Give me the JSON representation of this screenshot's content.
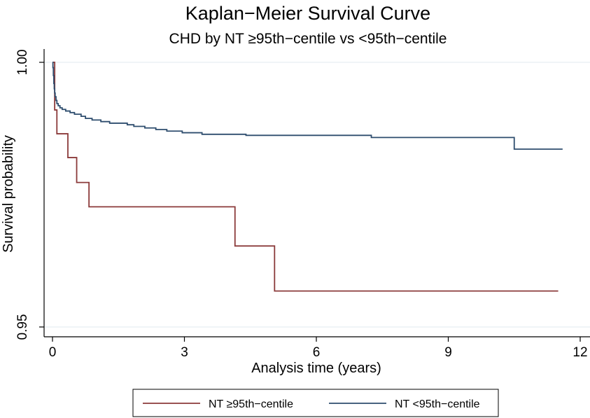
{
  "chart_data": {
    "type": "line",
    "title": "Kaplan−Meier Survival Curve",
    "subtitle": "CHD by NT ≥95th−centile vs <95th−centile",
    "xlabel": "Analysis time (years)",
    "ylabel": "Survival probability",
    "xlim": [
      0,
      12
    ],
    "ylim": [
      0.95,
      1.0
    ],
    "xticks": [
      0,
      3,
      6,
      9,
      12
    ],
    "xtick_labels": [
      "0",
      "3",
      "6",
      "9",
      "12"
    ],
    "yticks": [
      0.95,
      1.0
    ],
    "ytick_labels": [
      "0.95",
      "1.00"
    ],
    "grid": true,
    "legend_position": "bottom",
    "series": [
      {
        "name": "NT ≥95th−centile",
        "color": "#8b3a3a",
        "step": true,
        "x": [
          0,
          0.05,
          0.1,
          0.35,
          0.55,
          0.83,
          4.15,
          5.05,
          11.5
        ],
        "y": [
          1.0,
          0.991,
          0.9865,
          0.982,
          0.9773,
          0.9727,
          0.9653,
          0.9568,
          0.9568
        ]
      },
      {
        "name": "NT <95th−centile",
        "color": "#2e4d6e",
        "step": true,
        "x": [
          0,
          0.01,
          0.02,
          0.03,
          0.04,
          0.05,
          0.06,
          0.08,
          0.1,
          0.13,
          0.17,
          0.22,
          0.3,
          0.4,
          0.5,
          0.65,
          0.75,
          0.9,
          1.1,
          1.3,
          1.7,
          1.85,
          2.1,
          2.35,
          2.6,
          2.95,
          3.4,
          4.4,
          7.25,
          10.5,
          11.6
        ],
        "y": [
          1.0,
          0.999,
          0.9975,
          0.996,
          0.995,
          0.9942,
          0.9935,
          0.9928,
          0.9922,
          0.9918,
          0.9914,
          0.9911,
          0.9908,
          0.9905,
          0.9902,
          0.9898,
          0.9894,
          0.9891,
          0.9888,
          0.9885,
          0.9882,
          0.9879,
          0.9876,
          0.9873,
          0.987,
          0.9867,
          0.9864,
          0.9862,
          0.9858,
          0.9836,
          0.9836
        ]
      }
    ]
  }
}
